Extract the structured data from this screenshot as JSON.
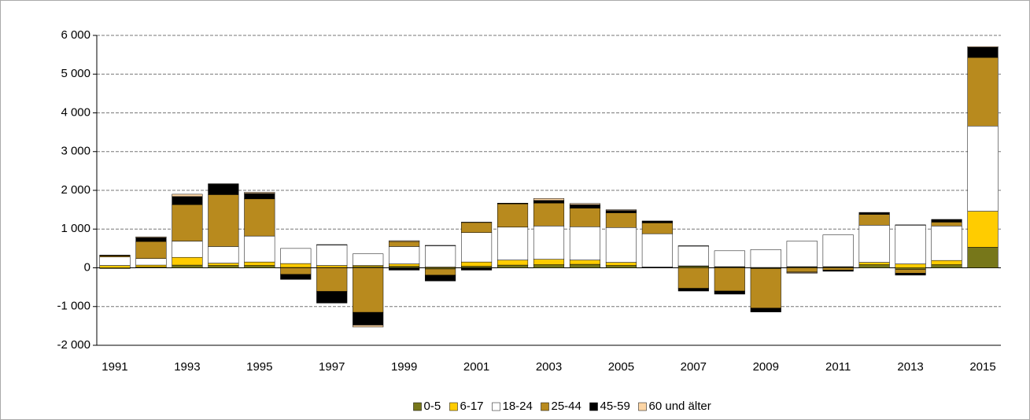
{
  "chart_data": {
    "type": "stacked_bar",
    "categories": [
      "1991",
      null,
      "1993",
      null,
      "1995",
      null,
      "1997",
      null,
      "1999",
      null,
      "2001",
      null,
      "2003",
      null,
      "2005",
      null,
      "2007",
      null,
      "2009",
      null,
      "2011",
      null,
      "2013",
      null,
      "2015"
    ],
    "series": [
      {
        "name": "0-5",
        "color": "#77771a",
        "values": [
          -20,
          20,
          70,
          60,
          60,
          10,
          10,
          30,
          40,
          -30,
          40,
          70,
          80,
          90,
          60,
          10,
          40,
          20,
          -20,
          20,
          20,
          80,
          -40,
          80,
          530
        ]
      },
      {
        "name": "6-17",
        "color": "#ffcc00",
        "values": [
          60,
          50,
          200,
          60,
          90,
          100,
          50,
          30,
          60,
          20,
          110,
          130,
          140,
          110,
          80,
          10,
          10,
          10,
          10,
          10,
          10,
          60,
          100,
          110,
          930
        ]
      },
      {
        "name": "18-24",
        "color": "#ffffff",
        "values": [
          220,
          170,
          420,
          430,
          670,
          390,
          530,
          300,
          450,
          550,
          760,
          850,
          860,
          860,
          900,
          860,
          510,
          410,
          460,
          660,
          820,
          960,
          1000,
          890,
          2200
        ]
      },
      {
        "name": "25-44",
        "color": "#b88a1e",
        "values": [
          30,
          440,
          940,
          1340,
          960,
          -170,
          -610,
          -1150,
          130,
          -160,
          260,
          600,
          590,
          480,
          380,
          280,
          -530,
          -600,
          -1020,
          -110,
          -60,
          280,
          -100,
          100,
          1770
        ]
      },
      {
        "name": "45-59",
        "color": "#000000",
        "values": [
          10,
          100,
          210,
          270,
          140,
          -130,
          -300,
          -330,
          -60,
          -150,
          -60,
          10,
          70,
          90,
          60,
          40,
          -70,
          -80,
          -100,
          -10,
          -30,
          40,
          -50,
          60,
          260
        ]
      },
      {
        "name": "60 und älter",
        "color": "#fcd5a5",
        "values": [
          10,
          20,
          60,
          10,
          30,
          0,
          10,
          -50,
          20,
          10,
          10,
          10,
          50,
          30,
          20,
          10,
          10,
          0,
          0,
          -20,
          0,
          10,
          10,
          10,
          20
        ]
      }
    ],
    "ylim": [
      -2000,
      6000
    ],
    "yticks": [
      {
        "value": -2000,
        "label": "-2 000"
      },
      {
        "value": -1000,
        "label": "-1 000"
      },
      0,
      {
        "value": 1000,
        "label": "1 000"
      },
      {
        "value": 2000,
        "label": "2 000"
      },
      {
        "value": 3000,
        "label": "3 000"
      },
      {
        "value": 4000,
        "label": "4 000"
      },
      {
        "value": 5000,
        "label": "5 000"
      },
      {
        "value": 6000,
        "label": "6 000"
      }
    ],
    "grid": true,
    "legend": "bottom"
  }
}
